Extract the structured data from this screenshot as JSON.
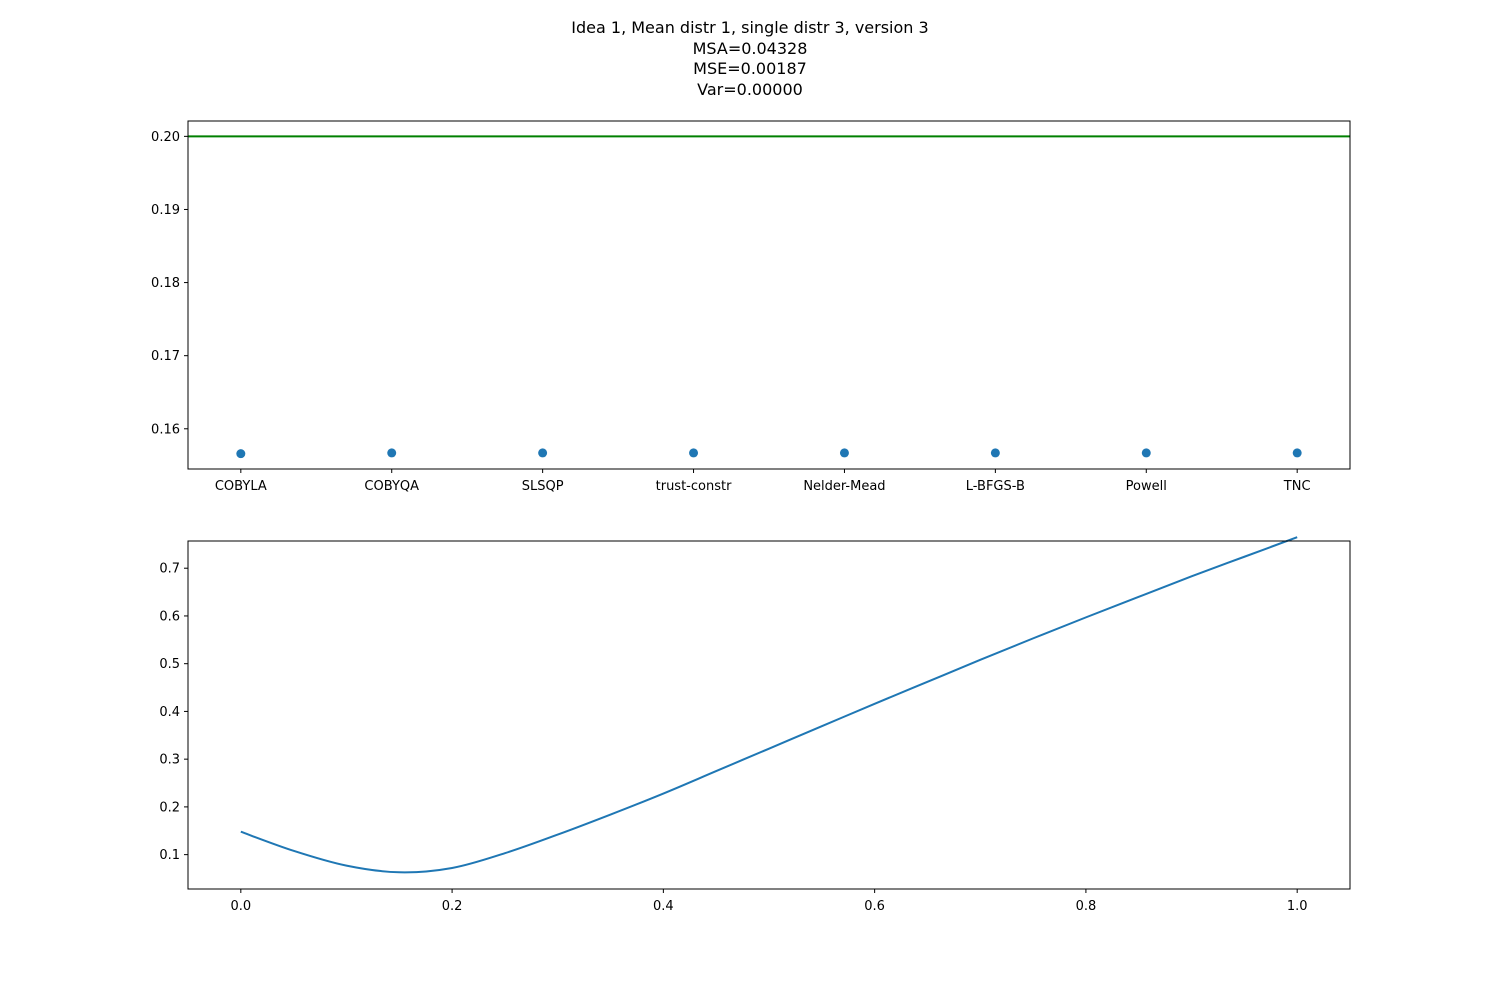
{
  "figure": {
    "title_lines": [
      "Idea 1, Mean distr 1, single distr 3, version 3",
      "MSA=0.04328",
      "MSE=0.00187",
      "Var=0.00000"
    ]
  },
  "chart_data": [
    {
      "type": "scatter",
      "categories": [
        "COBYLA",
        "COBYQA",
        "SLSQP",
        "trust-constr",
        "Nelder-Mead",
        "L-BFGS-B",
        "Powell",
        "TNC"
      ],
      "values": [
        0.1566,
        0.1567,
        0.1567,
        0.1567,
        0.1567,
        0.1567,
        0.1567,
        0.1567
      ],
      "reference_line": {
        "y": 0.2,
        "color": "#008000"
      },
      "point_color": "#1f77b4",
      "ylim": [
        0.1545,
        0.2021
      ],
      "yticks": [
        0.16,
        0.17,
        0.18,
        0.19,
        0.2
      ],
      "ytick_labels": [
        "0.16",
        "0.17",
        "0.18",
        "0.19",
        "0.20"
      ],
      "grid": false
    },
    {
      "type": "line",
      "x": [
        0.0,
        0.05,
        0.1,
        0.15,
        0.2,
        0.25,
        0.3,
        0.35,
        0.4,
        0.45,
        0.5,
        0.55,
        0.6,
        0.65,
        0.7,
        0.75,
        0.8,
        0.85,
        0.9,
        0.95,
        1.0
      ],
      "y": [
        0.148,
        0.108,
        0.077,
        0.063,
        0.072,
        0.103,
        0.142,
        0.184,
        0.228,
        0.275,
        0.322,
        0.369,
        0.416,
        0.462,
        0.508,
        0.553,
        0.597,
        0.64,
        0.683,
        0.724,
        0.765
      ],
      "line_color": "#1f77b4",
      "xlim": [
        -0.05,
        1.05
      ],
      "ylim": [
        0.028,
        0.757
      ],
      "xticks": [
        0.0,
        0.2,
        0.4,
        0.6,
        0.8,
        1.0
      ],
      "xtick_labels": [
        "0.0",
        "0.2",
        "0.4",
        "0.6",
        "0.8",
        "1.0"
      ],
      "yticks": [
        0.1,
        0.2,
        0.3,
        0.4,
        0.5,
        0.6,
        0.7
      ],
      "ytick_labels": [
        "0.1",
        "0.2",
        "0.3",
        "0.4",
        "0.5",
        "0.6",
        "0.7"
      ],
      "grid": false
    }
  ]
}
